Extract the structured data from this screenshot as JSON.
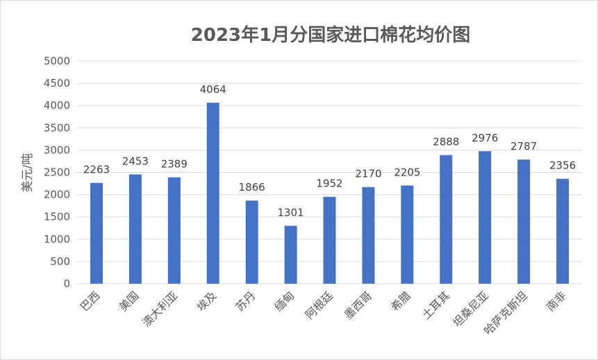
{
  "chart_data": {
    "type": "bar",
    "title": "2023年1月分国家进口棉花均价图",
    "xlabel": "",
    "ylabel": "美元/吨",
    "categories": [
      "巴西",
      "美国",
      "澳大利亚",
      "埃及",
      "苏丹",
      "缅甸",
      "阿根廷",
      "墨西哥",
      "希腊",
      "土耳其",
      "坦桑尼亚",
      "哈萨克斯坦",
      "南非"
    ],
    "values": [
      2263,
      2453,
      2389,
      4064,
      1866,
      1301,
      1952,
      2170,
      2205,
      2888,
      2976,
      2787,
      2356
    ],
    "ylim": [
      0,
      5000
    ],
    "yticks": [
      0,
      500,
      1000,
      1500,
      2000,
      2500,
      3000,
      3500,
      4000,
      4500,
      5000
    ],
    "grid": true,
    "legend": "none",
    "data_labels": true,
    "bar_color": "#4472c4",
    "grid_color": "#d9d9d9"
  }
}
